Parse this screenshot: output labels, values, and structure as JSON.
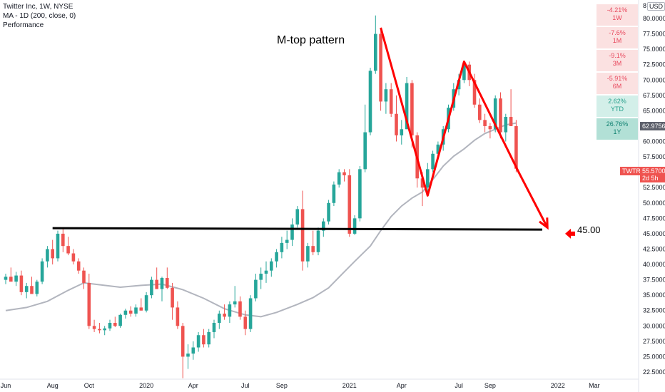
{
  "legend": {
    "title": "Twitter Inc, 1W, NYSE",
    "ma": "MA - 1D (200, close, 0)",
    "performance": "Performance"
  },
  "annotation": {
    "pattern_label": "M-top pattern",
    "target_label": "45.00",
    "target_value": 45.0,
    "neckline_value": 45.9
  },
  "performance": [
    {
      "value": "-4.21%",
      "period": "1W",
      "sign": "neg"
    },
    {
      "value": "-7.6%",
      "period": "1M",
      "sign": "neg"
    },
    {
      "value": "-9.1%",
      "period": "3M",
      "sign": "neg"
    },
    {
      "value": "-5.91%",
      "period": "6M",
      "sign": "neg"
    },
    {
      "value": "2.62%",
      "period": "YTD",
      "sign": "pos"
    },
    {
      "value": "26.76%",
      "period": "1Y",
      "sign": "pos-strong"
    }
  ],
  "axis": {
    "currency": "USD",
    "top_tick": "8",
    "last_price": "62.9756",
    "ticker": "TWTR",
    "current_price": "55.5700",
    "countdown": "2d 5h"
  },
  "colors": {
    "up": "#26a69a",
    "down": "#ef5350",
    "ma": "#b2b5be",
    "annotation": "#ff0000",
    "neckline": "#000000"
  },
  "chart_data": {
    "type": "candlestick",
    "ylim": [
      21.5,
      83.0
    ],
    "y_ticks": [
      80,
      77.5,
      75,
      72.5,
      70,
      67.5,
      65,
      62.5,
      60,
      57.5,
      55,
      52.5,
      50,
      47.5,
      45,
      42.5,
      40,
      37.5,
      35,
      32.5,
      30,
      27.5,
      25,
      22.5
    ],
    "y_tick_labels": [
      "80.0000",
      "77.5000",
      "75.0000",
      "72.5000",
      "70.0000",
      "67.5000",
      "65.0000",
      "62.5000",
      "60.0000",
      "57.5000",
      "55.0000",
      "52.5000",
      "50.0000",
      "47.5000",
      "45.0000",
      "42.5000",
      "40.0000",
      "37.5000",
      "35.0000",
      "32.5000",
      "30.0000",
      "27.5000",
      "25.0000",
      "22.5000"
    ],
    "x_labels": [
      {
        "label": "Jun",
        "week": 0
      },
      {
        "label": "Aug",
        "week": 9
      },
      {
        "label": "Oct",
        "week": 16
      },
      {
        "label": "2020",
        "week": 27
      },
      {
        "label": "Apr",
        "week": 36
      },
      {
        "label": "Jul",
        "week": 46
      },
      {
        "label": "Sep",
        "week": 53
      },
      {
        "label": "2021",
        "week": 66
      },
      {
        "label": "Apr",
        "week": 76
      },
      {
        "label": "Jul",
        "week": 87
      },
      {
        "label": "Sep",
        "week": 93
      },
      {
        "label": "2022",
        "week": 106
      },
      {
        "label": "Mar",
        "week": 113
      }
    ],
    "ohlc": [
      [
        37.5,
        38.5,
        36.8,
        38.0
      ],
      [
        38.0,
        39.5,
        37.5,
        37.2
      ],
      [
        37.2,
        38.8,
        36.5,
        38.2
      ],
      [
        38.2,
        39.0,
        35.0,
        35.5
      ],
      [
        35.5,
        37.0,
        34.5,
        36.5
      ],
      [
        36.5,
        38.0,
        35.8,
        35.2
      ],
      [
        35.2,
        37.5,
        34.8,
        37.2
      ],
      [
        37.2,
        41.0,
        36.8,
        40.5
      ],
      [
        40.5,
        43.0,
        39.5,
        42.5
      ],
      [
        42.5,
        44.0,
        40.0,
        41.0
      ],
      [
        41.0,
        45.5,
        40.5,
        45.0
      ],
      [
        45.0,
        46.0,
        42.0,
        43.0
      ],
      [
        43.0,
        44.5,
        41.5,
        41.8
      ],
      [
        41.8,
        42.5,
        40.0,
        40.5
      ],
      [
        40.5,
        41.0,
        38.5,
        39.0
      ],
      [
        39.0,
        39.5,
        36.0,
        37.0
      ],
      [
        37.0,
        38.5,
        29.5,
        30.0
      ],
      [
        30.0,
        31.0,
        29.0,
        29.5
      ],
      [
        29.5,
        30.5,
        28.8,
        29.3
      ],
      [
        29.3,
        30.0,
        28.5,
        29.6
      ],
      [
        29.6,
        31.0,
        29.2,
        30.5
      ],
      [
        30.5,
        31.5,
        29.8,
        30.0
      ],
      [
        30.0,
        32.0,
        29.7,
        31.8
      ],
      [
        31.8,
        32.8,
        31.2,
        32.5
      ],
      [
        32.5,
        33.2,
        31.5,
        32.0
      ],
      [
        32.0,
        33.5,
        31.5,
        33.0
      ],
      [
        33.0,
        34.5,
        32.5,
        32.5
      ],
      [
        32.5,
        35.5,
        32.2,
        35.0
      ],
      [
        35.0,
        38.0,
        34.5,
        37.5
      ],
      [
        37.5,
        39.5,
        36.5,
        36.0
      ],
      [
        36.0,
        38.0,
        34.0,
        37.8
      ],
      [
        37.8,
        39.5,
        36.0,
        36.2
      ],
      [
        36.2,
        37.0,
        31.0,
        33.0
      ],
      [
        33.0,
        34.0,
        29.5,
        30.0
      ],
      [
        30.0,
        30.5,
        21.5,
        25.0
      ],
      [
        25.0,
        27.0,
        23.0,
        25.5
      ],
      [
        25.5,
        27.5,
        24.5,
        26.5
      ],
      [
        26.5,
        29.0,
        25.8,
        28.5
      ],
      [
        28.5,
        29.5,
        26.5,
        27.0
      ],
      [
        27.0,
        29.5,
        26.5,
        29.0
      ],
      [
        29.0,
        31.0,
        28.0,
        30.5
      ],
      [
        30.5,
        32.5,
        29.5,
        32.0
      ],
      [
        32.0,
        33.5,
        31.0,
        31.5
      ],
      [
        31.5,
        34.0,
        30.5,
        33.5
      ],
      [
        33.5,
        36.5,
        33.0,
        34.0
      ],
      [
        34.0,
        34.8,
        31.0,
        31.5
      ],
      [
        31.5,
        32.5,
        28.5,
        29.5
      ],
      [
        29.5,
        35.0,
        29.0,
        34.5
      ],
      [
        34.5,
        38.5,
        34.0,
        37.5
      ],
      [
        37.5,
        39.5,
        36.0,
        38.5
      ],
      [
        38.5,
        40.5,
        37.0,
        39.0
      ],
      [
        39.0,
        41.0,
        38.0,
        40.5
      ],
      [
        40.5,
        42.5,
        39.5,
        42.0
      ],
      [
        42.0,
        44.5,
        41.0,
        43.5
      ],
      [
        43.5,
        45.5,
        42.5,
        44.0
      ],
      [
        44.0,
        47.5,
        43.0,
        46.5
      ],
      [
        46.5,
        49.5,
        46.0,
        49.0
      ],
      [
        49.0,
        52.0,
        39.0,
        40.5
      ],
      [
        40.5,
        43.5,
        39.5,
        43.0
      ],
      [
        43.0,
        45.5,
        41.5,
        42.0
      ],
      [
        42.0,
        46.0,
        41.5,
        45.5
      ],
      [
        45.5,
        47.5,
        44.5,
        47.0
      ],
      [
        47.0,
        50.5,
        46.5,
        50.0
      ],
      [
        50.0,
        53.5,
        49.5,
        53.0
      ],
      [
        53.0,
        55.5,
        52.5,
        55.0
      ],
      [
        55.0,
        55.5,
        53.5,
        54.5
      ],
      [
        54.5,
        55.5,
        44.5,
        45.0
      ],
      [
        45.0,
        48.0,
        44.8,
        47.5
      ],
      [
        47.5,
        56.0,
        47.0,
        55.5
      ],
      [
        55.5,
        66.0,
        55.0,
        61.5
      ],
      [
        61.5,
        72.0,
        61.0,
        71.5
      ],
      [
        71.5,
        80.5,
        71.0,
        77.5
      ],
      [
        77.5,
        78.0,
        65.0,
        66.5
      ],
      [
        66.5,
        69.5,
        64.5,
        68.5
      ],
      [
        68.5,
        69.5,
        64.0,
        64.5
      ],
      [
        64.5,
        67.5,
        60.0,
        61.0
      ],
      [
        61.0,
        63.5,
        59.5,
        62.0
      ],
      [
        62.0,
        70.5,
        62.0,
        69.5
      ],
      [
        69.5,
        70.0,
        59.0,
        61.0
      ],
      [
        61.0,
        61.5,
        52.5,
        54.0
      ],
      [
        54.0,
        55.0,
        49.5,
        52.5
      ],
      [
        52.5,
        56.5,
        51.5,
        55.5
      ],
      [
        55.5,
        58.5,
        55.0,
        58.0
      ],
      [
        58.0,
        60.0,
        57.0,
        59.5
      ],
      [
        59.5,
        62.5,
        58.5,
        62.0
      ],
      [
        62.0,
        66.0,
        61.5,
        65.5
      ],
      [
        65.5,
        69.5,
        65.0,
        68.5
      ],
      [
        68.5,
        71.0,
        67.5,
        70.0
      ],
      [
        70.0,
        73.0,
        69.5,
        72.5
      ],
      [
        72.5,
        73.0,
        69.0,
        70.0
      ],
      [
        70.0,
        71.0,
        65.5,
        66.0
      ],
      [
        66.0,
        67.0,
        63.0,
        63.5
      ],
      [
        63.5,
        64.5,
        61.5,
        62.5
      ],
      [
        62.5,
        63.0,
        60.5,
        62.0
      ],
      [
        62.0,
        67.5,
        61.5,
        67.0
      ],
      [
        67.0,
        68.0,
        60.5,
        61.5
      ],
      [
        61.5,
        64.5,
        60.0,
        64.0
      ],
      [
        64.0,
        68.5,
        62.5,
        62.5
      ],
      [
        62.5,
        63.5,
        55.0,
        55.57
      ]
    ],
    "ma_200": [
      [
        0,
        32.5
      ],
      [
        4,
        33.0
      ],
      [
        8,
        34.0
      ],
      [
        12,
        35.8
      ],
      [
        15,
        37.0
      ],
      [
        17,
        36.8
      ],
      [
        22,
        36.3
      ],
      [
        26,
        36.6
      ],
      [
        30,
        36.8
      ],
      [
        34,
        35.9
      ],
      [
        38,
        34.5
      ],
      [
        42,
        32.8
      ],
      [
        46,
        31.8
      ],
      [
        49,
        31.5
      ],
      [
        52,
        32.2
      ],
      [
        56,
        33.5
      ],
      [
        59,
        34.6
      ],
      [
        62,
        36.2
      ],
      [
        65,
        38.8
      ],
      [
        67,
        40.5
      ],
      [
        70,
        43.0
      ],
      [
        72,
        45.5
      ],
      [
        74,
        47.8
      ],
      [
        76,
        49.5
      ],
      [
        78,
        50.8
      ],
      [
        80,
        51.8
      ],
      [
        82,
        53.8
      ],
      [
        84,
        56.0
      ],
      [
        86,
        57.6
      ],
      [
        88,
        58.8
      ],
      [
        90,
        60.2
      ],
      [
        92,
        61.3
      ],
      [
        94,
        62.0
      ],
      [
        96,
        62.7
      ],
      [
        98,
        63.0
      ]
    ],
    "annotation_line": [
      [
        72,
        78.5
      ],
      [
        81,
        51.2
      ],
      [
        88,
        73.0
      ],
      [
        98.5,
        55.0
      ],
      [
        104,
        46.0
      ]
    ],
    "neckline": {
      "from_week": 9,
      "to_week": 103,
      "value": 45.9
    }
  }
}
